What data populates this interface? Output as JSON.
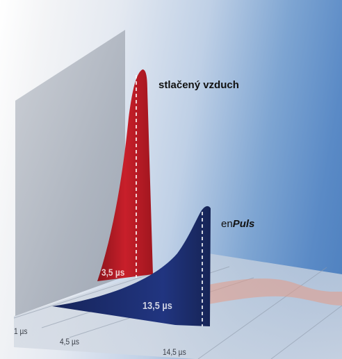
{
  "labels": {
    "compressed_air": "stlačený vzduch",
    "enpuls_prefix": "en",
    "enpuls_brand": "Puls"
  },
  "pulse_widths": {
    "compressed_air": "3,5 µs",
    "enpuls": "13,5 µs"
  },
  "time_axis": {
    "ticks": [
      "1 µs",
      "4,5 µs",
      "14,5 µs"
    ]
  },
  "colors": {
    "compressed_air_peak": "#c0202a",
    "enpuls_peak": "#1d2d6b",
    "backdrop_panel": "#aab1bc",
    "floor_glow": "#e39a86"
  }
}
